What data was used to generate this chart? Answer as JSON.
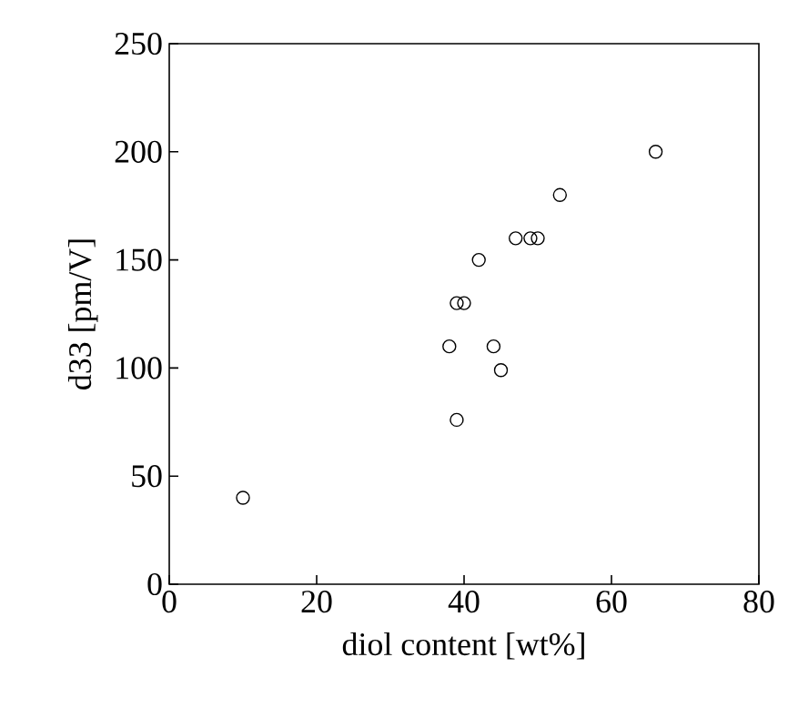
{
  "chart_data": {
    "type": "scatter",
    "xlabel": "diol content [wt%]",
    "ylabel": "d33 [pm/V]",
    "x": [
      10,
      38,
      39,
      40,
      39,
      42,
      44,
      45,
      47,
      49,
      50,
      53,
      66
    ],
    "values": [
      40,
      110,
      130,
      130,
      76,
      150,
      110,
      99,
      160,
      160,
      160,
      180,
      200
    ],
    "color": "#000000",
    "marker": "circle",
    "xlim": [
      0,
      80
    ],
    "ylim": [
      0,
      250
    ],
    "xticks": [
      0,
      20,
      40,
      60,
      80
    ],
    "yticks": [
      0,
      50,
      100,
      150,
      200,
      250
    ]
  }
}
